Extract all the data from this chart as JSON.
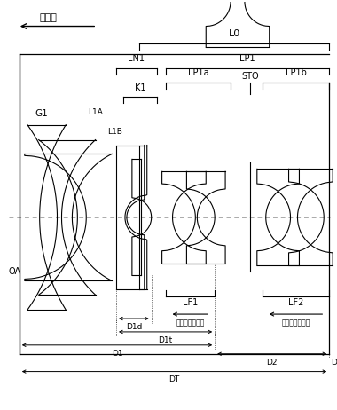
{
  "bg_color": "#ffffff",
  "line_color": "#000000",
  "figsize": [
    3.8,
    4.62
  ],
  "dpi": 100,
  "title_text": "物体側",
  "sto_label": "STO",
  "g1_label": "G1",
  "l1a_label": "L1A",
  "l1b_label": "L1B",
  "oa_label": "OA",
  "l0_label": "L0",
  "ln1_label": "LN1",
  "lp1_label": "LP1",
  "lp1a_label": "LP1a",
  "lp1b_label": "LP1b",
  "k1_label": "K1",
  "lf1_label": "LF1",
  "lf2_label": "LF2",
  "focus_label": "（フォーカス）",
  "d1d_label": "D1d",
  "d1t_label": "D1t",
  "d1_label": "D1",
  "d2_label": "D2",
  "dt_label": "DT",
  "d_label": "D"
}
